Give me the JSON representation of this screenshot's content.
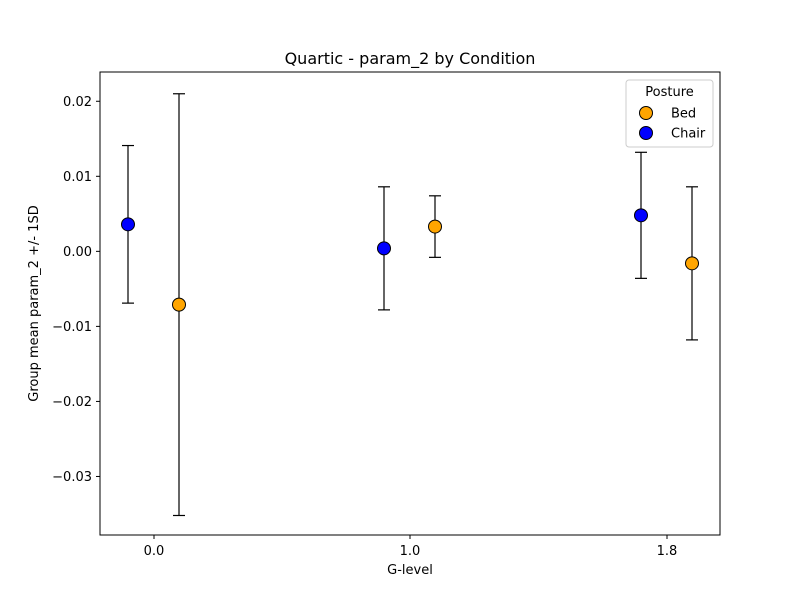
{
  "chart_data": {
    "type": "scatter",
    "title": "Quartic - param_2 by Condition",
    "xlabel": "G-level",
    "ylabel": "Group mean param_2 +/- 1SD",
    "x_ticks": [
      "0.0",
      "1.0",
      "1.8"
    ],
    "y_ticks": [
      -0.03,
      -0.02,
      -0.01,
      0.0,
      0.01,
      0.02
    ],
    "y_tick_labels": [
      "−0.03",
      "−0.02",
      "−0.01",
      "0.00",
      "0.01",
      "0.02"
    ],
    "ylim": [
      -0.0378,
      0.0239
    ],
    "grid": false,
    "legend": {
      "title": "Posture",
      "placement": "top-right"
    },
    "series": [
      {
        "name": "Bed",
        "color": "#ffa500",
        "points": [
          {
            "g": "0.0",
            "mean": -0.0071,
            "sd": 0.0281
          },
          {
            "g": "1.0",
            "mean": 0.0033,
            "sd": 0.0041
          },
          {
            "g": "1.8",
            "mean": -0.0016,
            "sd": 0.0102
          }
        ]
      },
      {
        "name": "Chair",
        "color": "#0000ff",
        "points": [
          {
            "g": "0.0",
            "mean": 0.0036,
            "sd": 0.0105
          },
          {
            "g": "1.0",
            "mean": 0.0004,
            "sd": 0.0082
          },
          {
            "g": "1.8",
            "mean": 0.0048,
            "sd": 0.0084
          }
        ]
      }
    ]
  }
}
